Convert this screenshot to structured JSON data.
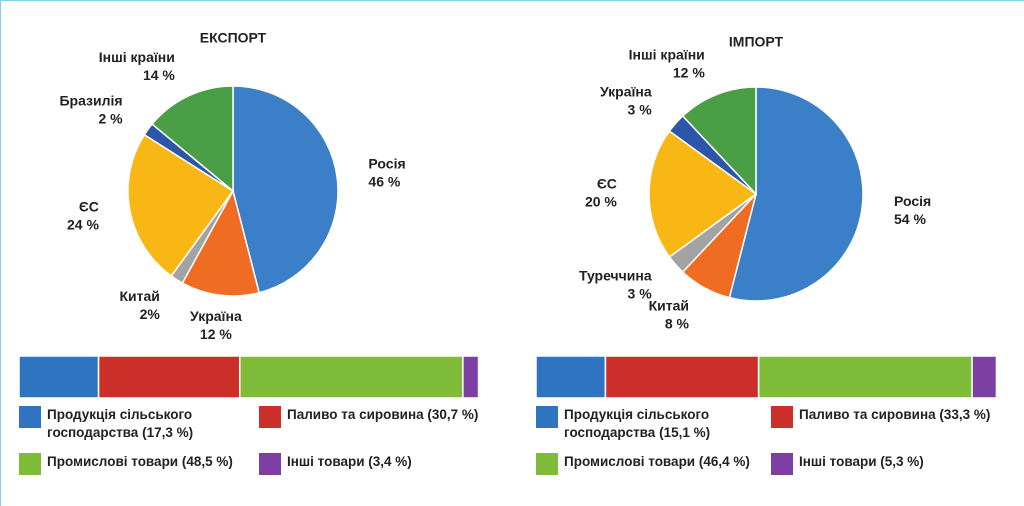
{
  "chart_data": [
    {
      "type": "pie",
      "title": "ЕКСПОРТ",
      "categories": [
        "Росія",
        "Україна",
        "Китай",
        "ЄС",
        "Бразилія",
        "Інші країни"
      ],
      "values": [
        46,
        12,
        2,
        24,
        2,
        14
      ],
      "value_labels": [
        "46 %",
        "12 %",
        "2%",
        "24 %",
        "2 %",
        "14 %"
      ],
      "colors": [
        "#3b7fc9",
        "#ef6c22",
        "#a3a3a3",
        "#f9b716",
        "#2d56a9",
        "#4a9e46"
      ]
    },
    {
      "type": "bar",
      "orientation": "horizontal",
      "stacked": true,
      "xlim": [
        0,
        100
      ],
      "series": [
        {
          "name": "Продукція сільського господарства",
          "color": "#2f74c0",
          "values": [
            17.3
          ],
          "value_labels": [
            "(17,3 %)"
          ]
        },
        {
          "name": "Паливо та сировина",
          "color": "#cc2e2a",
          "values": [
            30.7
          ],
          "value_labels": [
            "(30,7 %)"
          ]
        },
        {
          "name": "Промислові товари",
          "color": "#7ebc3a",
          "values": [
            48.5
          ],
          "value_labels": [
            "(48,5 %)"
          ]
        },
        {
          "name": "Інші товари",
          "color": "#7e3fa2",
          "values": [
            3.4
          ],
          "value_labels": [
            "(3,4 %)"
          ]
        }
      ]
    },
    {
      "type": "pie",
      "title": "ІМПОРТ",
      "categories": [
        "Росія",
        "Китай",
        "Туреччина",
        "ЄС",
        "Україна",
        "Інші країни"
      ],
      "values": [
        54,
        8,
        3,
        20,
        3,
        12
      ],
      "value_labels": [
        "54 %",
        "8 %",
        "3 %",
        "20 %",
        "3 %",
        "12 %"
      ],
      "colors": [
        "#3b7fc9",
        "#ef6c22",
        "#a3a3a3",
        "#f9b716",
        "#2d56a9",
        "#4a9e46"
      ]
    },
    {
      "type": "bar",
      "orientation": "horizontal",
      "stacked": true,
      "xlim": [
        0,
        100
      ],
      "series": [
        {
          "name": "Продукція сільського господарства",
          "color": "#2f74c0",
          "values": [
            15.1
          ],
          "value_labels": [
            "(15,1 %)"
          ]
        },
        {
          "name": "Паливо та сировина",
          "color": "#cc2e2a",
          "values": [
            33.3
          ],
          "value_labels": [
            "(33,3 %)"
          ]
        },
        {
          "name": "Промислові товари",
          "color": "#7ebc3a",
          "values": [
            46.4
          ],
          "value_labels": [
            "(46,4 %)"
          ]
        },
        {
          "name": "Інші товари",
          "color": "#7e3fa2",
          "values": [
            5.3
          ],
          "value_labels": [
            "(5,3 %)"
          ]
        }
      ]
    }
  ]
}
